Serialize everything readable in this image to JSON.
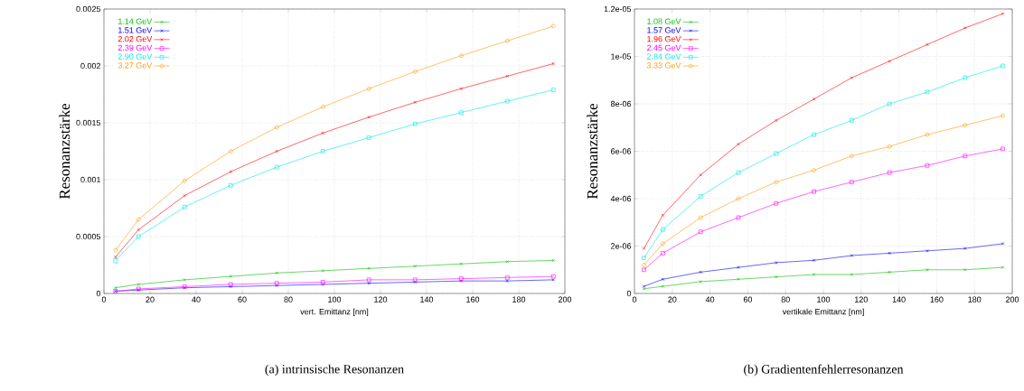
{
  "chart_data": [
    {
      "type": "line",
      "xlabel": "vert. Emittanz [nm]",
      "ylabel": "Resonanzstärke",
      "annotations": [
        "(a) intrinsische Resonanzen"
      ],
      "xlim": [
        0,
        200
      ],
      "xticks": [
        0,
        20,
        40,
        60,
        80,
        100,
        120,
        140,
        160,
        180,
        200
      ],
      "ylim": [
        0,
        0.0025
      ],
      "yticks": [
        0,
        0.0005,
        0.001,
        0.0015,
        0.002,
        0.0025
      ],
      "grid": true,
      "legend": "top left",
      "x": [
        5,
        15,
        35,
        55,
        75,
        95,
        115,
        135,
        155,
        175,
        195
      ],
      "series": [
        {
          "name": "1.14 GeV",
          "color": "#00c000",
          "marker": "cross",
          "values": [
            5e-05,
            8e-05,
            0.00012,
            0.00015,
            0.00018,
            0.0002,
            0.00022,
            0.00024,
            0.00026,
            0.00028,
            0.00029
          ]
        },
        {
          "name": "1.51 GeV",
          "color": "#0000ff",
          "marker": "cross",
          "values": [
            2e-05,
            3e-05,
            5e-05,
            6e-05,
            7e-05,
            8e-05,
            9e-05,
            0.0001,
            0.00011,
            0.00011,
            0.00012
          ]
        },
        {
          "name": "2.02 GeV",
          "color": "#ff0000",
          "marker": "cross",
          "values": [
            0.00032,
            0.00056,
            0.00086,
            0.00107,
            0.00125,
            0.00141,
            0.00155,
            0.00168,
            0.0018,
            0.00191,
            0.00202
          ]
        },
        {
          "name": "2.39 GeV",
          "color": "#ff00ff",
          "marker": "square",
          "values": [
            2e-05,
            4e-05,
            6e-05,
            8e-05,
            9e-05,
            0.0001,
            0.00012,
            0.00012,
            0.00013,
            0.00014,
            0.00015
          ]
        },
        {
          "name": "2.90 GeV",
          "color": "#00e8e8",
          "marker": "square",
          "values": [
            0.00029,
            0.0005,
            0.00076,
            0.00095,
            0.00111,
            0.00125,
            0.00137,
            0.00149,
            0.00159,
            0.00169,
            0.00179
          ]
        },
        {
          "name": "3.27 GeV",
          "color": "#ff9900",
          "marker": "circle",
          "values": [
            0.00038,
            0.00065,
            0.00099,
            0.00125,
            0.00146,
            0.00164,
            0.0018,
            0.00195,
            0.00209,
            0.00222,
            0.00235
          ]
        }
      ]
    },
    {
      "type": "line",
      "xlabel": "vertikale Emittanz [nm]",
      "ylabel": "Resonanzstärke",
      "annotations": [
        "(b) Gradientenfehlerresonanzen"
      ],
      "xlim": [
        0,
        200
      ],
      "xticks": [
        0,
        20,
        40,
        60,
        80,
        100,
        120,
        140,
        160,
        180,
        200
      ],
      "ylim": [
        0,
        1.2e-05
      ],
      "yticks": [
        0,
        {
          "value": 2e-06,
          "label": "2e-06"
        },
        {
          "value": 4e-06,
          "label": "4e-06"
        },
        {
          "value": 6e-06,
          "label": "6e-06"
        },
        {
          "value": 8e-06,
          "label": "8e-06"
        },
        {
          "value": 1e-05,
          "label": "1e-05"
        },
        {
          "value": 1.2e-05,
          "label": "1.2e-05"
        }
      ],
      "grid": true,
      "legend": "top left",
      "x": [
        5,
        15,
        35,
        55,
        75,
        95,
        115,
        135,
        155,
        175,
        195
      ],
      "series": [
        {
          "name": "1.08 GeV",
          "color": "#00c000",
          "marker": "cross",
          "values": [
            2e-07,
            3e-07,
            5e-07,
            6e-07,
            7e-07,
            8e-07,
            8e-07,
            9e-07,
            1e-06,
            1e-06,
            1.1e-06
          ]
        },
        {
          "name": "1.57 GeV",
          "color": "#0000ff",
          "marker": "cross",
          "values": [
            3e-07,
            6e-07,
            9e-07,
            1.1e-06,
            1.3e-06,
            1.4e-06,
            1.6e-06,
            1.7e-06,
            1.8e-06,
            1.9e-06,
            2.1e-06
          ]
        },
        {
          "name": "1.96 GeV",
          "color": "#ff0000",
          "marker": "cross",
          "values": [
            1.9e-06,
            3.3e-06,
            5e-06,
            6.3e-06,
            7.3e-06,
            8.2e-06,
            9.1e-06,
            9.8e-06,
            1.05e-05,
            1.12e-05,
            1.18e-05
          ]
        },
        {
          "name": "2.45 GeV",
          "color": "#ff00ff",
          "marker": "square",
          "values": [
            1e-06,
            1.7e-06,
            2.6e-06,
            3.2e-06,
            3.8e-06,
            4.3e-06,
            4.7e-06,
            5.1e-06,
            5.4e-06,
            5.8e-06,
            6.1e-06
          ]
        },
        {
          "name": "2.84 GeV",
          "color": "#00e8e8",
          "marker": "square",
          "values": [
            1.5e-06,
            2.7e-06,
            4.1e-06,
            5.1e-06,
            5.9e-06,
            6.7e-06,
            7.3e-06,
            8e-06,
            8.5e-06,
            9.1e-06,
            9.6e-06
          ]
        },
        {
          "name": "3.33 GeV",
          "color": "#ff9900",
          "marker": "circle",
          "values": [
            1.2e-06,
            2.1e-06,
            3.2e-06,
            4e-06,
            4.7e-06,
            5.2e-06,
            5.8e-06,
            6.2e-06,
            6.7e-06,
            7.1e-06,
            7.5e-06
          ]
        }
      ]
    }
  ]
}
